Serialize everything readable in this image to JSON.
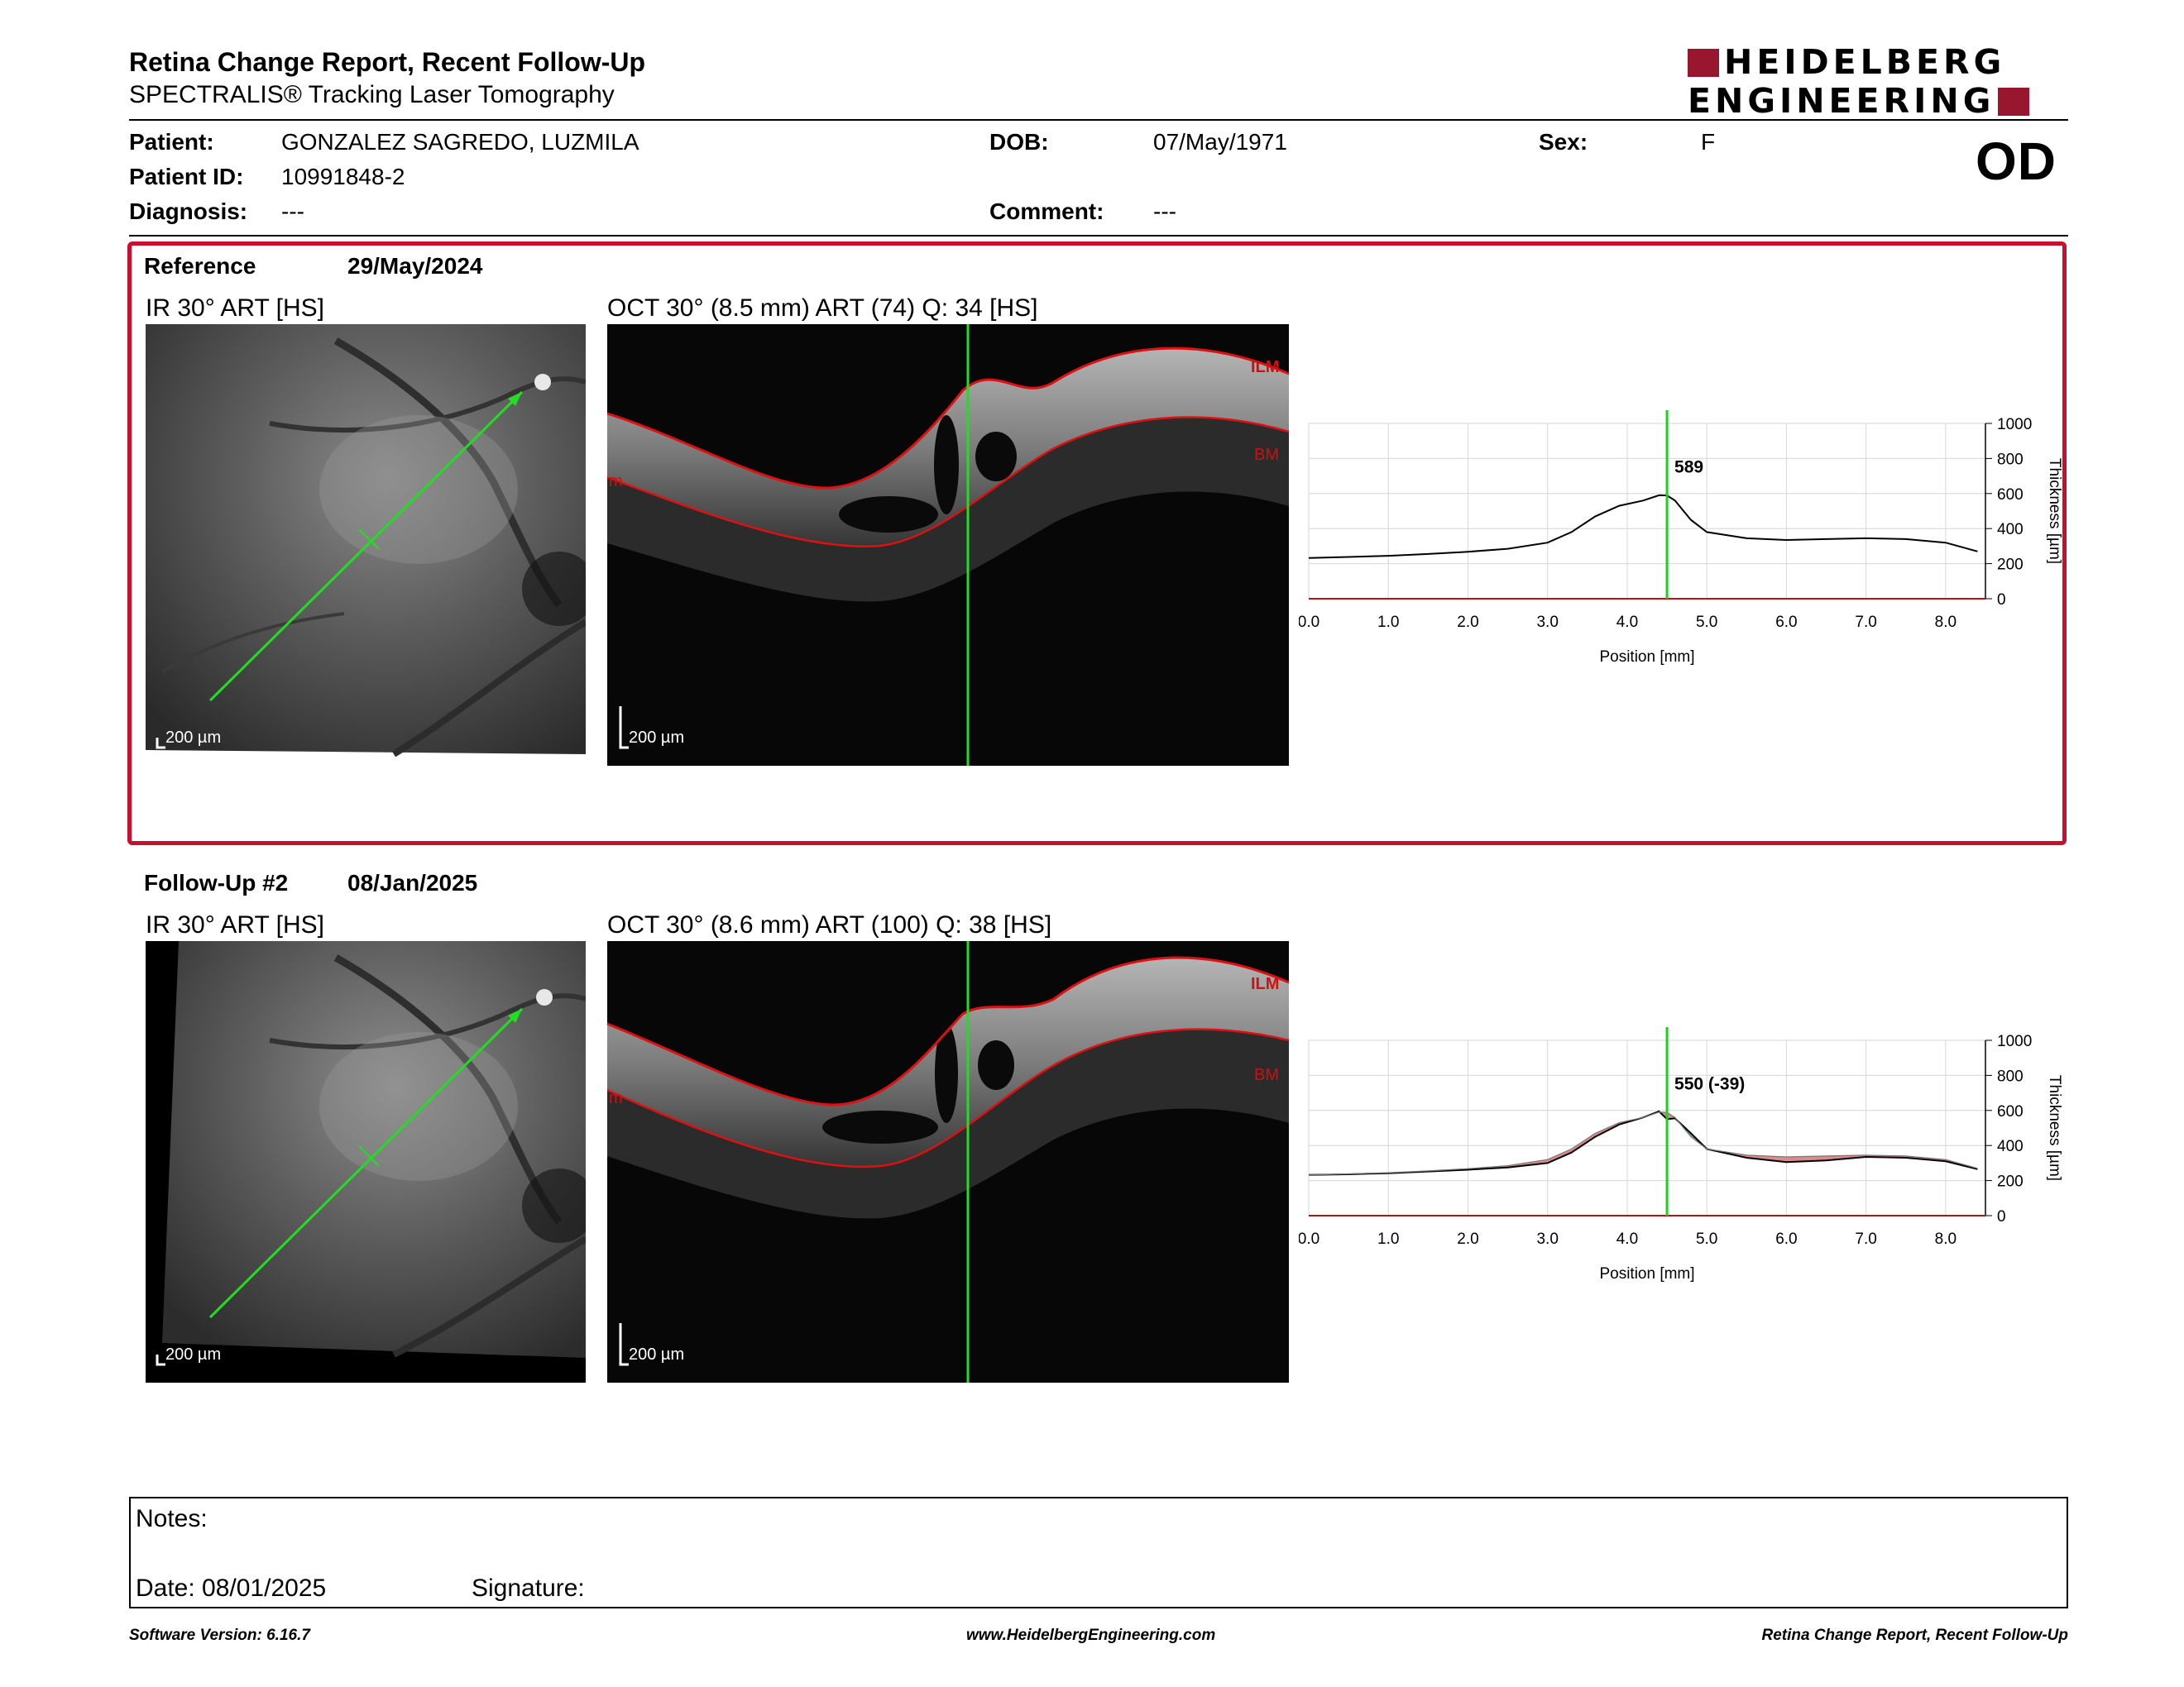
{
  "report": {
    "title": "Retina Change Report, Recent Follow-Up",
    "subtitle": "SPECTRALIS® Tracking Laser Tomography"
  },
  "logo": {
    "line1": "HEIDELBERG",
    "line2": "ENGINEERING",
    "brand_color": "#98172e"
  },
  "patient": {
    "name_label": "Patient:",
    "name": "GONZALEZ SAGREDO, LUZMILA",
    "dob_label": "DOB:",
    "dob": "07/May/1971",
    "sex_label": "Sex:",
    "sex": "F",
    "id_label": "Patient ID:",
    "id": "10991848-2",
    "diagnosis_label": "Diagnosis:",
    "diagnosis": "---",
    "comment_label": "Comment:",
    "comment": "---",
    "eye": "OD"
  },
  "reference": {
    "label": "Reference",
    "date": "29/May/2024",
    "ir_title": "IR 30° ART [HS]",
    "oct_title": "OCT 30° (8.5 mm) ART (74) Q: 34 [HS]",
    "scale_ir": "200 µm",
    "scale_oct": "200 µm",
    "ilm": "ILM",
    "bm": "BM",
    "bm_left": "m"
  },
  "followup": {
    "label": "Follow-Up #2",
    "date": "08/Jan/2025",
    "ir_title": "IR 30° ART [HS]",
    "oct_title": "OCT 30° (8.6 mm) ART (100) Q: 38 [HS]",
    "scale_ir": "200 µm",
    "scale_oct": "200 µm",
    "ilm": "ILM",
    "bm": "BM",
    "bm_left": "m"
  },
  "chart_data": [
    {
      "type": "line",
      "xlabel": "Position [mm]",
      "ylabel": "Thickness [µm]",
      "xlim": [
        0,
        8.5
      ],
      "ylim": [
        0,
        1000
      ],
      "x_ticks": [
        "0.0",
        "1.0",
        "2.0",
        "3.0",
        "4.0",
        "5.0",
        "6.0",
        "7.0",
        "8.0"
      ],
      "y_ticks": [
        "0",
        "200",
        "400",
        "600",
        "800",
        "1000"
      ],
      "grid": true,
      "cursor_x": 4.5,
      "cursor_label": "589",
      "cursor_color": "#22cc22",
      "series": [
        {
          "x": [
            0,
            0.5,
            1,
            1.5,
            2,
            2.5,
            3,
            3.3,
            3.6,
            3.9,
            4.2,
            4.4,
            4.5,
            4.6,
            4.8,
            5,
            5.5,
            6,
            6.5,
            7,
            7.5,
            8,
            8.4
          ],
          "values": [
            232,
            238,
            245,
            255,
            268,
            285,
            320,
            380,
            470,
            530,
            560,
            590,
            589,
            560,
            450,
            380,
            345,
            335,
            340,
            345,
            340,
            320,
            270
          ]
        }
      ]
    },
    {
      "type": "line",
      "xlabel": "Position [mm]",
      "ylabel": "Thickness [µm]",
      "xlim": [
        0,
        8.5
      ],
      "ylim": [
        0,
        1000
      ],
      "x_ticks": [
        "0.0",
        "1.0",
        "2.0",
        "3.0",
        "4.0",
        "5.0",
        "6.0",
        "7.0",
        "8.0"
      ],
      "y_ticks": [
        "0",
        "200",
        "400",
        "600",
        "800",
        "1000"
      ],
      "grid": true,
      "cursor_x": 4.5,
      "cursor_label": "550 (-39)",
      "cursor_color": "#22cc22",
      "loss_color": "#d9747a",
      "gain_color": "#4caf50",
      "series": [
        {
          "name": "Follow-Up",
          "x": [
            0,
            0.5,
            1,
            1.5,
            2,
            2.5,
            3,
            3.3,
            3.6,
            3.9,
            4.2,
            4.4,
            4.5,
            4.6,
            4.8,
            5,
            5.5,
            6,
            6.5,
            7,
            7.5,
            8,
            8.4
          ],
          "values": [
            232,
            236,
            242,
            252,
            262,
            275,
            300,
            360,
            450,
            520,
            560,
            595,
            550,
            555,
            470,
            380,
            330,
            305,
            315,
            335,
            330,
            310,
            265
          ]
        },
        {
          "name": "Reference",
          "x": [
            0,
            0.5,
            1,
            1.5,
            2,
            2.5,
            3,
            3.3,
            3.6,
            3.9,
            4.2,
            4.4,
            4.5,
            4.6,
            4.8,
            5,
            5.5,
            6,
            6.5,
            7,
            7.5,
            8,
            8.4
          ],
          "values": [
            232,
            238,
            245,
            255,
            268,
            285,
            320,
            380,
            470,
            530,
            560,
            590,
            589,
            560,
            450,
            380,
            345,
            335,
            340,
            345,
            340,
            320,
            270
          ]
        }
      ]
    }
  ],
  "notes": {
    "label": "Notes:",
    "date_label": "Date: 08/01/2025",
    "signature_label": "Signature:"
  },
  "footer": {
    "left": "Software Version: 6.16.7",
    "center": "www.HeidelbergEngineering.com",
    "right": "Retina Change Report, Recent Follow-Up"
  }
}
